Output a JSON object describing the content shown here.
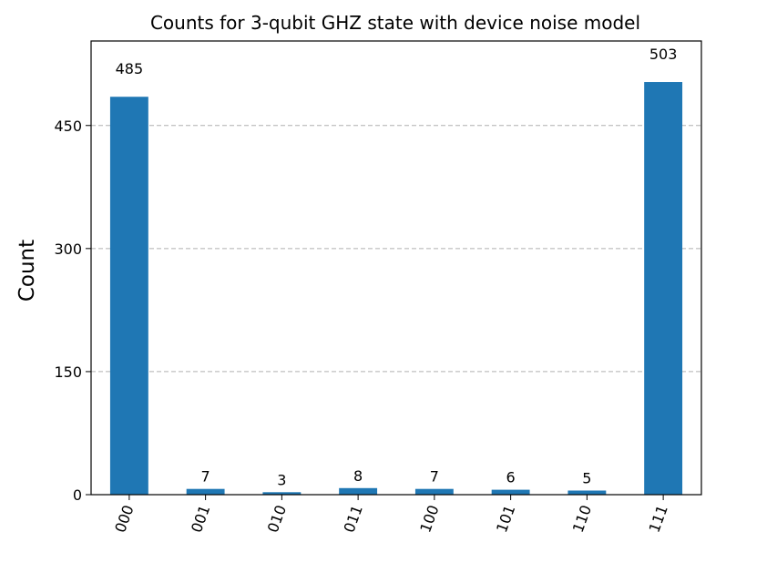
{
  "chart_data": {
    "type": "bar",
    "title": "Counts for 3-qubit GHZ state with device noise model",
    "xlabel": "",
    "ylabel": "Count",
    "categories": [
      "000",
      "001",
      "010",
      "011",
      "100",
      "101",
      "110",
      "111"
    ],
    "values": [
      485,
      7,
      3,
      8,
      7,
      6,
      5,
      503
    ],
    "data_labels": [
      "485",
      "7",
      "3",
      "8",
      "7",
      "6",
      "5",
      "503"
    ],
    "yticks": [
      0,
      150,
      300,
      450
    ],
    "ylim": [
      0,
      553
    ],
    "grid": "horizontal dashed",
    "bar_color": "#1f77b4",
    "grid_color": "#b0b0b0"
  }
}
